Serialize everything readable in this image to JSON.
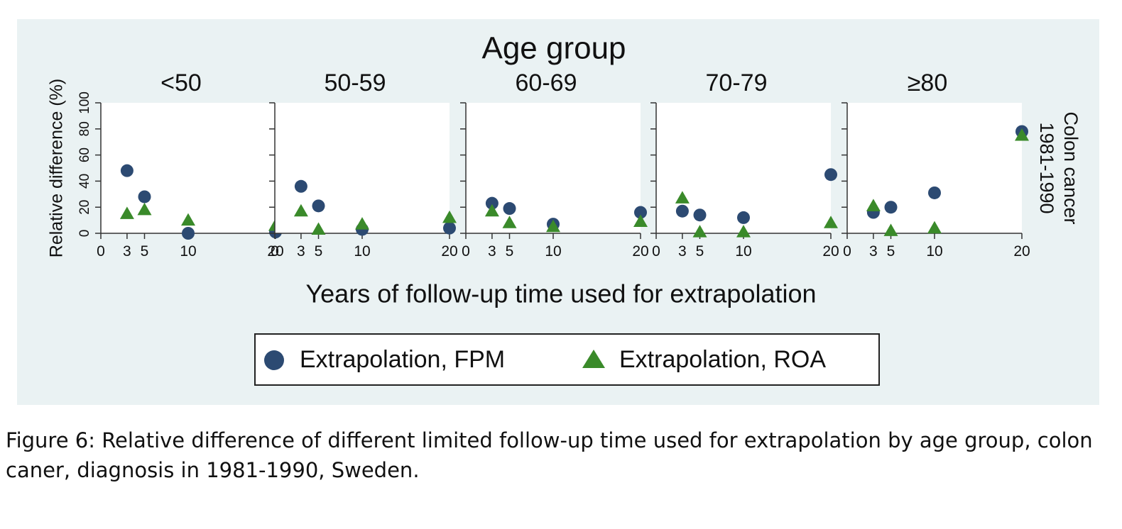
{
  "figure": {
    "caption": "Figure 6: Relative difference of different limited follow-up time used for extrapolation by age group, colon caner, diagnosis in 1981-1990, Sweden.",
    "panel_color": "#eaf2f3"
  },
  "chart_data": {
    "type": "scatter",
    "title": "Age group",
    "xlabel": "Years of follow-up time used for extrapolation",
    "ylabel": "Relative difference (%)",
    "row_label": [
      "Colon cancer",
      "1981-1990"
    ],
    "xlim": [
      0,
      20
    ],
    "ylim": [
      0,
      100
    ],
    "xticks": [
      0,
      3,
      5,
      10,
      20
    ],
    "yticks": [
      0,
      20,
      40,
      60,
      80,
      100
    ],
    "legend_position": "bottom-center",
    "series": [
      {
        "name": "Extrapolation, FPM",
        "marker": "circle",
        "color": "#2c4a72"
      },
      {
        "name": "Extrapolation, ROA",
        "marker": "triangle",
        "color": "#3a8a2a"
      }
    ],
    "panels": [
      {
        "title": "<50",
        "x": [
          3,
          5,
          10,
          20
        ],
        "fpm": [
          48,
          28,
          0,
          1
        ],
        "roa": [
          15,
          18,
          10,
          6
        ]
      },
      {
        "title": "50-59",
        "x": [
          3,
          5,
          10,
          20
        ],
        "fpm": [
          36,
          21,
          3,
          4
        ],
        "roa": [
          17,
          3,
          7,
          12
        ]
      },
      {
        "title": "60-69",
        "x": [
          3,
          5,
          10,
          20
        ],
        "fpm": [
          23,
          19,
          7,
          16
        ],
        "roa": [
          17,
          8,
          5,
          9
        ]
      },
      {
        "title": "70-79",
        "x": [
          3,
          5,
          10,
          20
        ],
        "fpm": [
          17,
          14,
          12,
          45
        ],
        "roa": [
          27,
          1,
          1,
          8
        ]
      },
      {
        "title": "≥80",
        "x": [
          3,
          5,
          10,
          20
        ],
        "fpm": [
          16,
          20,
          31,
          78
        ],
        "roa": [
          21,
          2,
          4,
          75
        ]
      }
    ]
  }
}
